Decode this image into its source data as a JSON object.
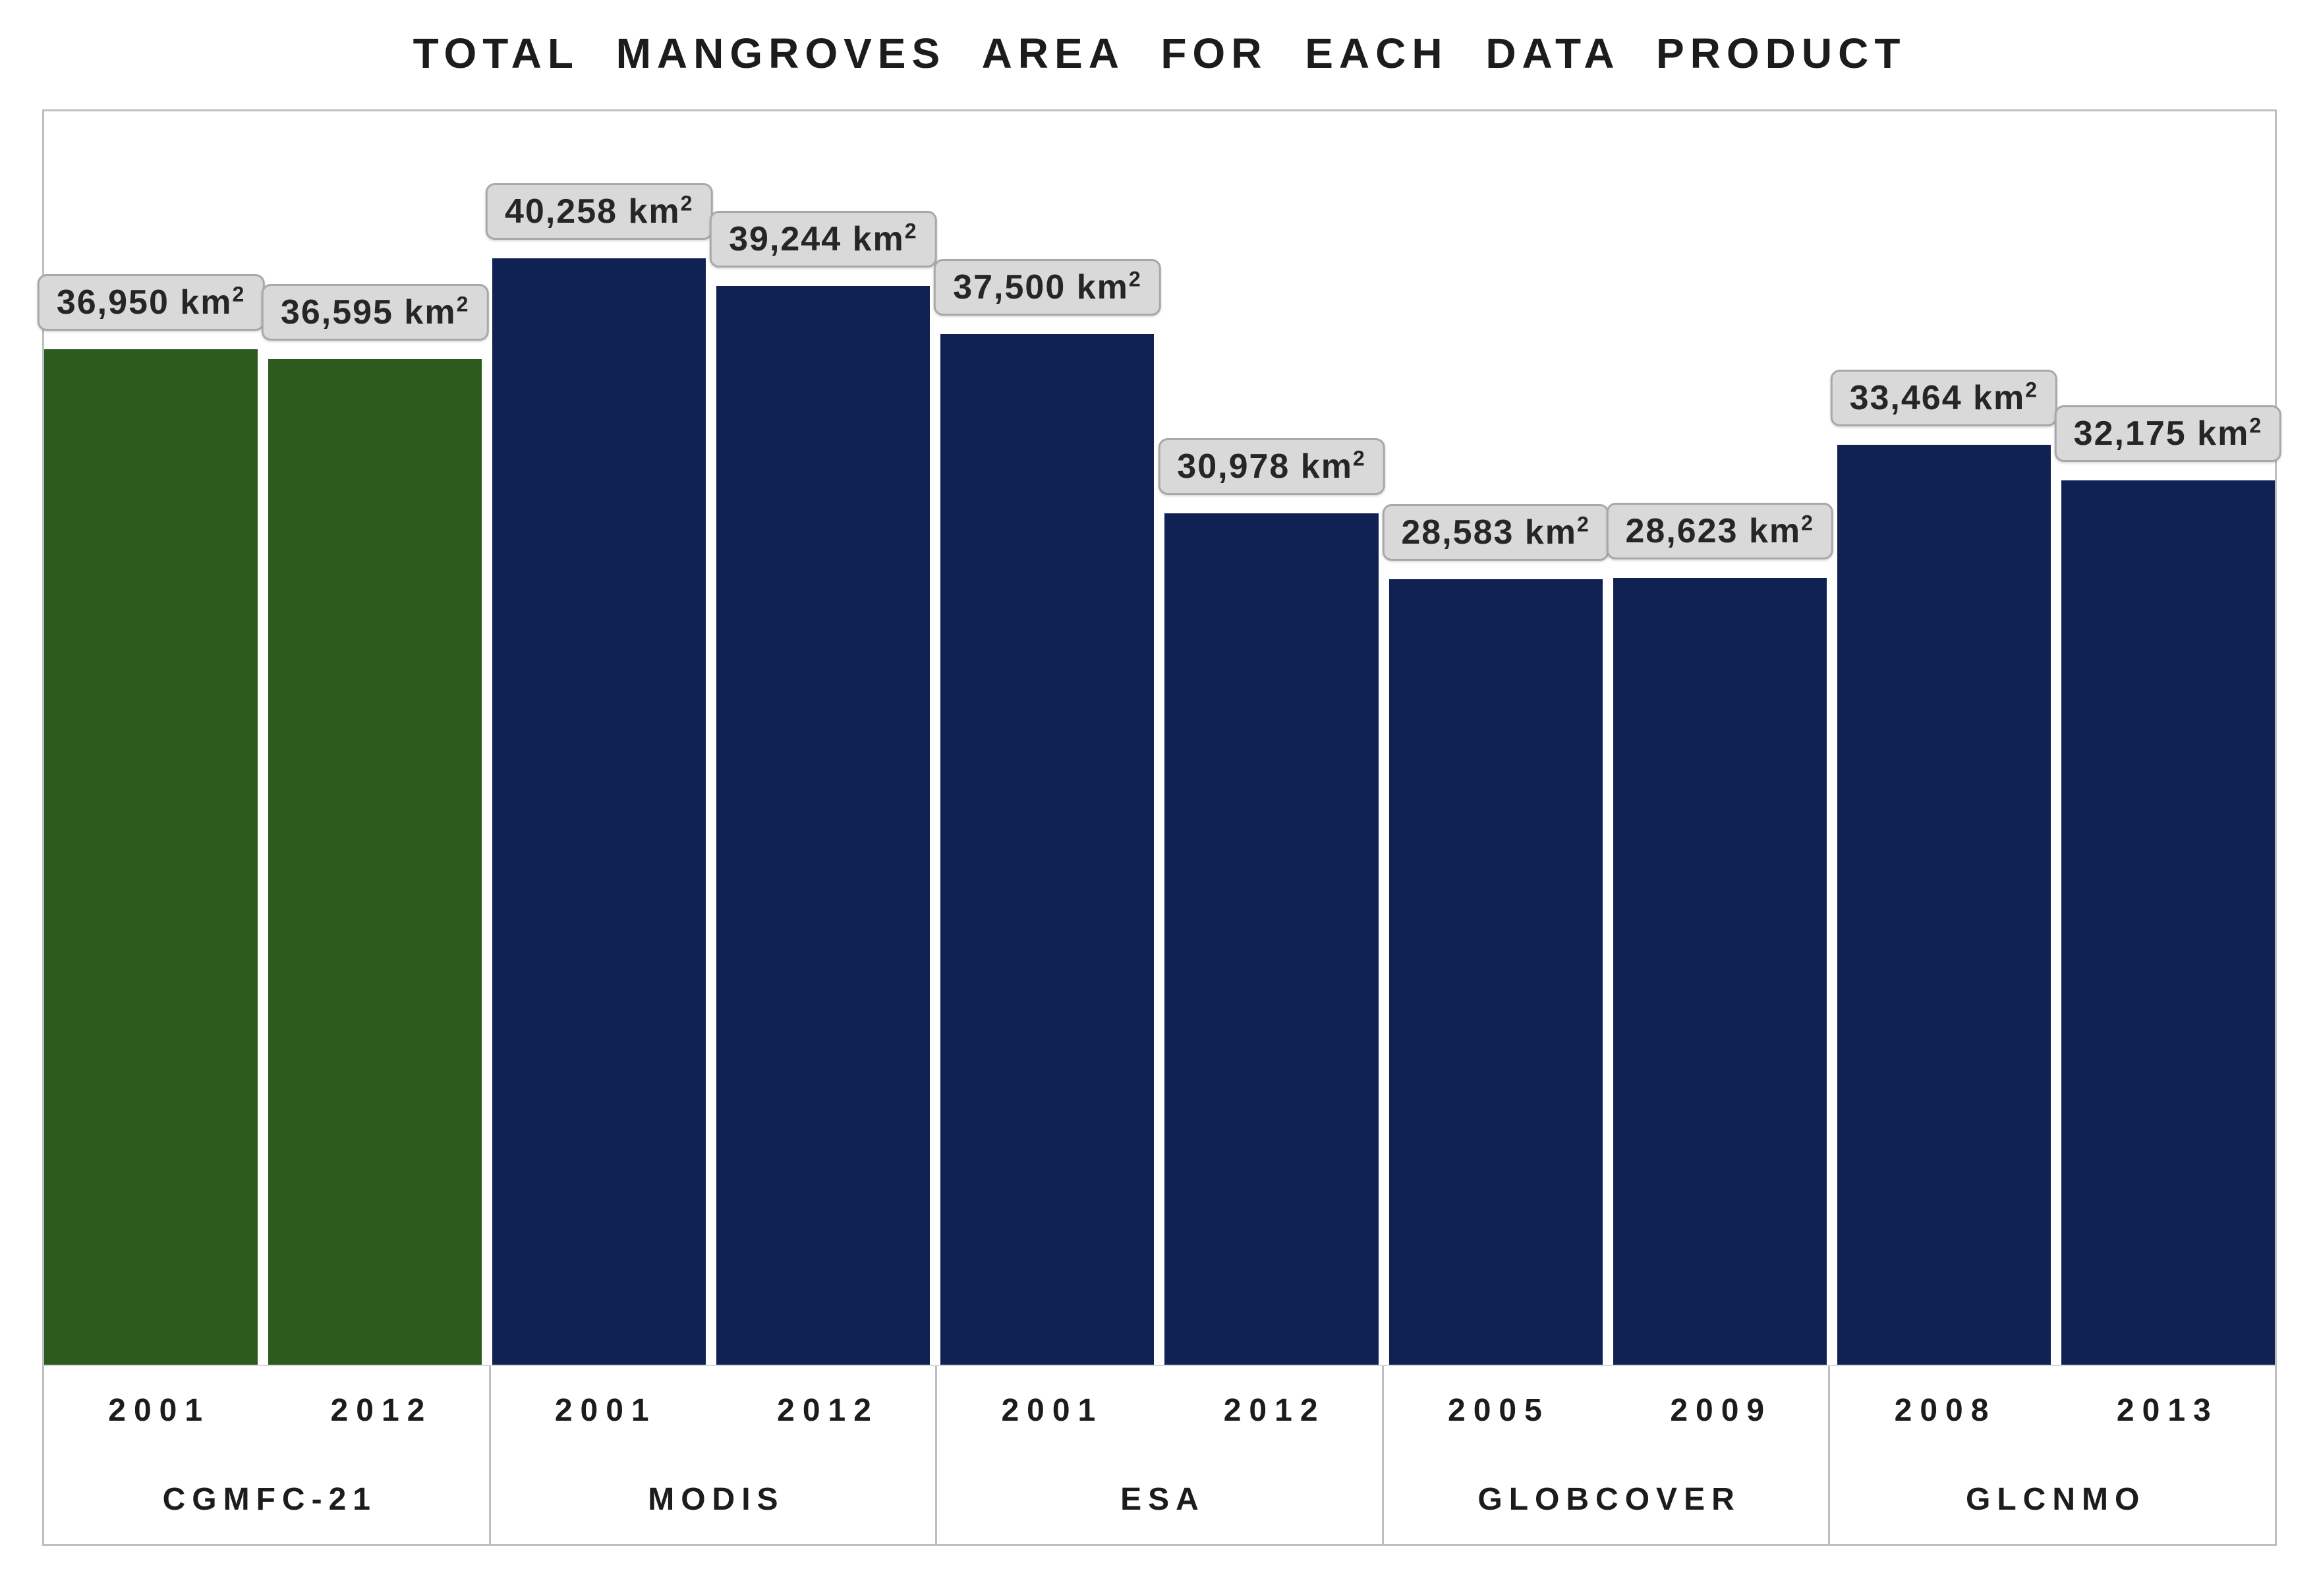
{
  "chart_data": {
    "type": "bar",
    "title": "TOTAL MANGROVES AREA FOR EACH DATA PRODUCT",
    "xlabel": "",
    "ylabel": "",
    "ylim": [
      0,
      45600
    ],
    "grid": false,
    "legend": "none",
    "unit_base": "km",
    "unit_exponent": "2",
    "categories": [
      "CGMFC-21 2001",
      "CGMFC-21 2012",
      "MODIS 2001",
      "MODIS 2012",
      "ESA 2001",
      "ESA 2012",
      "GLOBCOVER 2005",
      "GLOBCOVER 2009",
      "GLCNMO 2008",
      "GLCNMO 2013"
    ],
    "values": [
      36950,
      36595,
      40258,
      39244,
      37500,
      30978,
      28583,
      28623,
      33464,
      32175
    ],
    "groups": [
      {
        "product": "CGMFC-21",
        "bars": [
          {
            "year": "2001",
            "value": 36950,
            "display": "36,950",
            "color_key": "green"
          },
          {
            "year": "2012",
            "value": 36595,
            "display": "36,595",
            "color_key": "green"
          }
        ]
      },
      {
        "product": "MODIS",
        "bars": [
          {
            "year": "2001",
            "value": 40258,
            "display": "40,258",
            "color_key": "navy"
          },
          {
            "year": "2012",
            "value": 39244,
            "display": "39,244",
            "color_key": "navy"
          }
        ]
      },
      {
        "product": "ESA",
        "bars": [
          {
            "year": "2001",
            "value": 37500,
            "display": "37,500",
            "color_key": "navy"
          },
          {
            "year": "2012",
            "value": 30978,
            "display": "30,978",
            "color_key": "navy"
          }
        ]
      },
      {
        "product": "GLOBCOVER",
        "bars": [
          {
            "year": "2005",
            "value": 28583,
            "display": "28,583",
            "color_key": "navy"
          },
          {
            "year": "2009",
            "value": 28623,
            "display": "28,623",
            "color_key": "navy"
          }
        ]
      },
      {
        "product": "GLCNMO",
        "bars": [
          {
            "year": "2008",
            "value": 33464,
            "display": "33,464",
            "color_key": "navy"
          },
          {
            "year": "2013",
            "value": 32175,
            "display": "32,175",
            "color_key": "navy"
          }
        ]
      }
    ],
    "colors": {
      "green": "#2d5a1e",
      "navy": "#102254",
      "label_bg": "#d9d9d9",
      "label_border": "#a8a8a8",
      "frame_border": "#bfbfbf",
      "text": "#1c1c1c"
    }
  }
}
